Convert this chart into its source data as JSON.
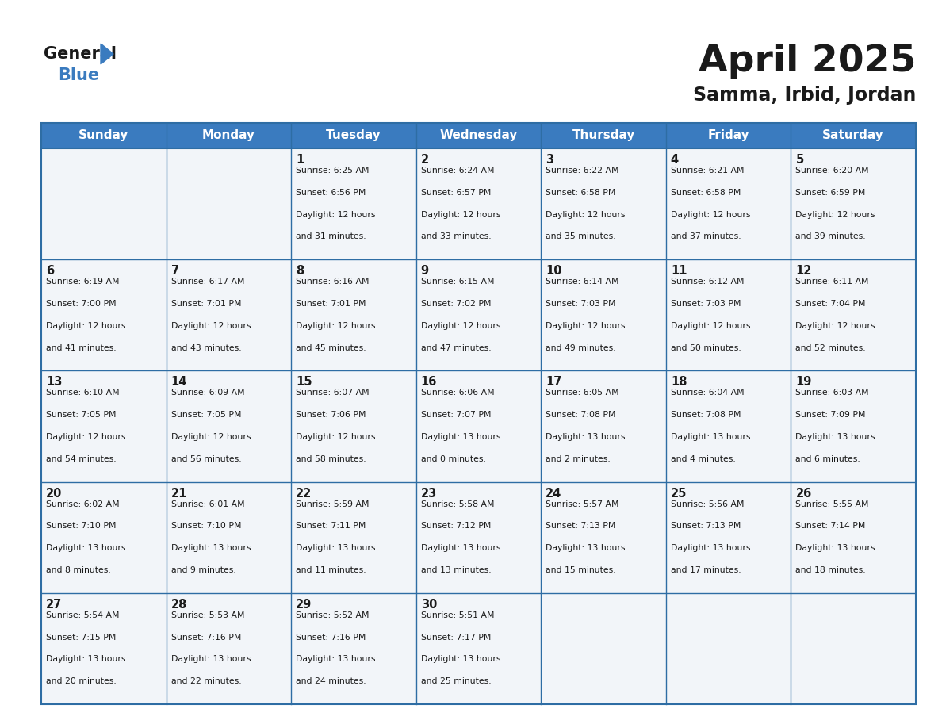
{
  "title": "April 2025",
  "subtitle": "Samma, Irbid, Jordan",
  "header_color": "#3a7bbf",
  "header_text_color": "#ffffff",
  "cell_bg_color": "#f2f5f9",
  "border_color": "#2e6da4",
  "text_color": "#1a1a1a",
  "day_headers": [
    "Sunday",
    "Monday",
    "Tuesday",
    "Wednesday",
    "Thursday",
    "Friday",
    "Saturday"
  ],
  "weeks": [
    [
      {
        "day": "",
        "sunrise": "",
        "sunset": "",
        "daylight": ""
      },
      {
        "day": "",
        "sunrise": "",
        "sunset": "",
        "daylight": ""
      },
      {
        "day": "1",
        "sunrise": "6:25 AM",
        "sunset": "6:56 PM",
        "daylight": "12 hours\nand 31 minutes."
      },
      {
        "day": "2",
        "sunrise": "6:24 AM",
        "sunset": "6:57 PM",
        "daylight": "12 hours\nand 33 minutes."
      },
      {
        "day": "3",
        "sunrise": "6:22 AM",
        "sunset": "6:58 PM",
        "daylight": "12 hours\nand 35 minutes."
      },
      {
        "day": "4",
        "sunrise": "6:21 AM",
        "sunset": "6:58 PM",
        "daylight": "12 hours\nand 37 minutes."
      },
      {
        "day": "5",
        "sunrise": "6:20 AM",
        "sunset": "6:59 PM",
        "daylight": "12 hours\nand 39 minutes."
      }
    ],
    [
      {
        "day": "6",
        "sunrise": "6:19 AM",
        "sunset": "7:00 PM",
        "daylight": "12 hours\nand 41 minutes."
      },
      {
        "day": "7",
        "sunrise": "6:17 AM",
        "sunset": "7:01 PM",
        "daylight": "12 hours\nand 43 minutes."
      },
      {
        "day": "8",
        "sunrise": "6:16 AM",
        "sunset": "7:01 PM",
        "daylight": "12 hours\nand 45 minutes."
      },
      {
        "day": "9",
        "sunrise": "6:15 AM",
        "sunset": "7:02 PM",
        "daylight": "12 hours\nand 47 minutes."
      },
      {
        "day": "10",
        "sunrise": "6:14 AM",
        "sunset": "7:03 PM",
        "daylight": "12 hours\nand 49 minutes."
      },
      {
        "day": "11",
        "sunrise": "6:12 AM",
        "sunset": "7:03 PM",
        "daylight": "12 hours\nand 50 minutes."
      },
      {
        "day": "12",
        "sunrise": "6:11 AM",
        "sunset": "7:04 PM",
        "daylight": "12 hours\nand 52 minutes."
      }
    ],
    [
      {
        "day": "13",
        "sunrise": "6:10 AM",
        "sunset": "7:05 PM",
        "daylight": "12 hours\nand 54 minutes."
      },
      {
        "day": "14",
        "sunrise": "6:09 AM",
        "sunset": "7:05 PM",
        "daylight": "12 hours\nand 56 minutes."
      },
      {
        "day": "15",
        "sunrise": "6:07 AM",
        "sunset": "7:06 PM",
        "daylight": "12 hours\nand 58 minutes."
      },
      {
        "day": "16",
        "sunrise": "6:06 AM",
        "sunset": "7:07 PM",
        "daylight": "13 hours\nand 0 minutes."
      },
      {
        "day": "17",
        "sunrise": "6:05 AM",
        "sunset": "7:08 PM",
        "daylight": "13 hours\nand 2 minutes."
      },
      {
        "day": "18",
        "sunrise": "6:04 AM",
        "sunset": "7:08 PM",
        "daylight": "13 hours\nand 4 minutes."
      },
      {
        "day": "19",
        "sunrise": "6:03 AM",
        "sunset": "7:09 PM",
        "daylight": "13 hours\nand 6 minutes."
      }
    ],
    [
      {
        "day": "20",
        "sunrise": "6:02 AM",
        "sunset": "7:10 PM",
        "daylight": "13 hours\nand 8 minutes."
      },
      {
        "day": "21",
        "sunrise": "6:01 AM",
        "sunset": "7:10 PM",
        "daylight": "13 hours\nand 9 minutes."
      },
      {
        "day": "22",
        "sunrise": "5:59 AM",
        "sunset": "7:11 PM",
        "daylight": "13 hours\nand 11 minutes."
      },
      {
        "day": "23",
        "sunrise": "5:58 AM",
        "sunset": "7:12 PM",
        "daylight": "13 hours\nand 13 minutes."
      },
      {
        "day": "24",
        "sunrise": "5:57 AM",
        "sunset": "7:13 PM",
        "daylight": "13 hours\nand 15 minutes."
      },
      {
        "day": "25",
        "sunrise": "5:56 AM",
        "sunset": "7:13 PM",
        "daylight": "13 hours\nand 17 minutes."
      },
      {
        "day": "26",
        "sunrise": "5:55 AM",
        "sunset": "7:14 PM",
        "daylight": "13 hours\nand 18 minutes."
      }
    ],
    [
      {
        "day": "27",
        "sunrise": "5:54 AM",
        "sunset": "7:15 PM",
        "daylight": "13 hours\nand 20 minutes."
      },
      {
        "day": "28",
        "sunrise": "5:53 AM",
        "sunset": "7:16 PM",
        "daylight": "13 hours\nand 22 minutes."
      },
      {
        "day": "29",
        "sunrise": "5:52 AM",
        "sunset": "7:16 PM",
        "daylight": "13 hours\nand 24 minutes."
      },
      {
        "day": "30",
        "sunrise": "5:51 AM",
        "sunset": "7:17 PM",
        "daylight": "13 hours\nand 25 minutes."
      },
      {
        "day": "",
        "sunrise": "",
        "sunset": "",
        "daylight": ""
      },
      {
        "day": "",
        "sunrise": "",
        "sunset": "",
        "daylight": ""
      },
      {
        "day": "",
        "sunrise": "",
        "sunset": "",
        "daylight": ""
      }
    ]
  ],
  "logo_general_color": "#1a1a1a",
  "logo_blue_color": "#3a7bbf",
  "logo_triangle_color": "#3a7bbf"
}
